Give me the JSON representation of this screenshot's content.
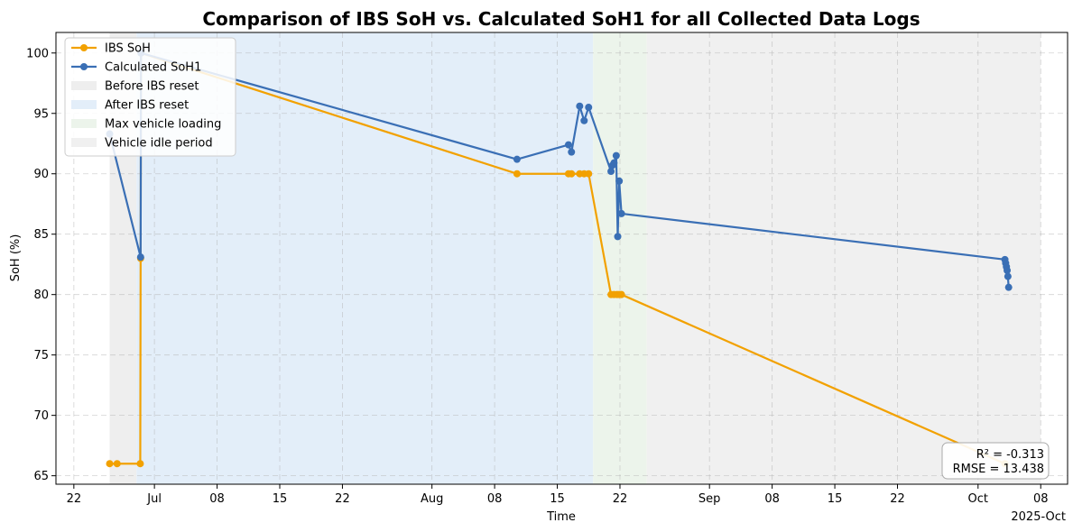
{
  "chart_data": {
    "type": "line",
    "title": "Comparison of IBS SoH vs. Calculated SoH1 for all Collected Data Logs",
    "xlabel": "Time",
    "ylabel": "SoH (%)",
    "ylim": [
      64.3,
      101.7
    ],
    "xlim": [
      "2025-06-20",
      "2025-10-11"
    ],
    "grid": true,
    "legend_position": "top-left",
    "x_ticks": [
      {
        "date": "2025-06-22",
        "label": "22"
      },
      {
        "date": "2025-07-01",
        "label": "Jul"
      },
      {
        "date": "2025-07-08",
        "label": "08"
      },
      {
        "date": "2025-07-15",
        "label": "15"
      },
      {
        "date": "2025-07-22",
        "label": "22"
      },
      {
        "date": "2025-08-01",
        "label": "Aug"
      },
      {
        "date": "2025-08-08",
        "label": "08"
      },
      {
        "date": "2025-08-15",
        "label": "15"
      },
      {
        "date": "2025-08-22",
        "label": "22"
      },
      {
        "date": "2025-09-01",
        "label": "Sep"
      },
      {
        "date": "2025-09-08",
        "label": "08"
      },
      {
        "date": "2025-09-15",
        "label": "15"
      },
      {
        "date": "2025-09-22",
        "label": "22"
      },
      {
        "date": "2025-10-01",
        "label": "Oct"
      },
      {
        "date": "2025-10-08",
        "label": "08"
      }
    ],
    "x_offset_label": "2025-Oct",
    "y_ticks": [
      65,
      70,
      75,
      80,
      85,
      90,
      95,
      100
    ],
    "regions": [
      {
        "name": "Before IBS reset",
        "start": "2025-06-26",
        "end": "2025-06-29",
        "color": "#eeeeee"
      },
      {
        "name": "After IBS reset",
        "start": "2025-06-29",
        "end": "2025-08-19",
        "color": "#e3eef9"
      },
      {
        "name": "Max vehicle loading",
        "start": "2025-08-19",
        "end": "2025-08-25",
        "color": "#ecf4eb"
      },
      {
        "name": "Vehicle idle period",
        "start": "2025-08-25",
        "end": "2025-10-08",
        "color": "#f0f0f0"
      }
    ],
    "series": [
      {
        "name": "IBS SoH",
        "color": "#f2a100",
        "points": [
          [
            "2025-06-26 00:00",
            66.0
          ],
          [
            "2025-06-26 20:00",
            66.0
          ],
          [
            "2025-06-29 10:00",
            66.0
          ],
          [
            "2025-06-29 11:00",
            83.0
          ],
          [
            "2025-06-29 12:00",
            100.0
          ],
          [
            "2025-08-10 12:00",
            90.0
          ],
          [
            "2025-08-16 06:00",
            90.0
          ],
          [
            "2025-08-16 14:00",
            90.0
          ],
          [
            "2025-08-17 12:00",
            90.0
          ],
          [
            "2025-08-18 00:00",
            90.0
          ],
          [
            "2025-08-18 12:00",
            90.0
          ],
          [
            "2025-08-21 00:00",
            80.0
          ],
          [
            "2025-08-21 08:00",
            80.0
          ],
          [
            "2025-08-21 16:00",
            80.0
          ],
          [
            "2025-08-21 22:00",
            80.0
          ],
          [
            "2025-08-22 04:00",
            80.0
          ],
          [
            "2025-10-04 00:00",
            66.0
          ]
        ]
      },
      {
        "name": "Calculated SoH1",
        "color": "#3a6fb5",
        "points": [
          [
            "2025-06-26 00:00",
            93.3
          ],
          [
            "2025-06-29 11:00",
            83.1
          ],
          [
            "2025-06-29 12:00",
            100.0
          ],
          [
            "2025-08-10 12:00",
            91.2
          ],
          [
            "2025-08-16 06:00",
            92.4
          ],
          [
            "2025-08-16 14:00",
            91.8
          ],
          [
            "2025-08-17 12:00",
            95.6
          ],
          [
            "2025-08-18 00:00",
            94.4
          ],
          [
            "2025-08-18 12:00",
            95.5
          ],
          [
            "2025-08-21 00:00",
            90.2
          ],
          [
            "2025-08-21 04:00",
            90.7
          ],
          [
            "2025-08-21 08:00",
            90.9
          ],
          [
            "2025-08-21 14:00",
            91.5
          ],
          [
            "2025-08-21 18:00",
            84.8
          ],
          [
            "2025-08-21 22:00",
            89.4
          ],
          [
            "2025-08-22 04:00",
            86.7
          ],
          [
            "2025-10-04 00:00",
            82.9
          ],
          [
            "2025-10-04 02:00",
            82.6
          ],
          [
            "2025-10-04 04:00",
            82.3
          ],
          [
            "2025-10-04 06:00",
            82.0
          ],
          [
            "2025-10-04 08:00",
            81.5
          ],
          [
            "2025-10-04 10:00",
            80.6
          ]
        ]
      }
    ],
    "annotations": {
      "r2": "R² = -0.313",
      "rmse": "RMSE = 13.438"
    }
  }
}
